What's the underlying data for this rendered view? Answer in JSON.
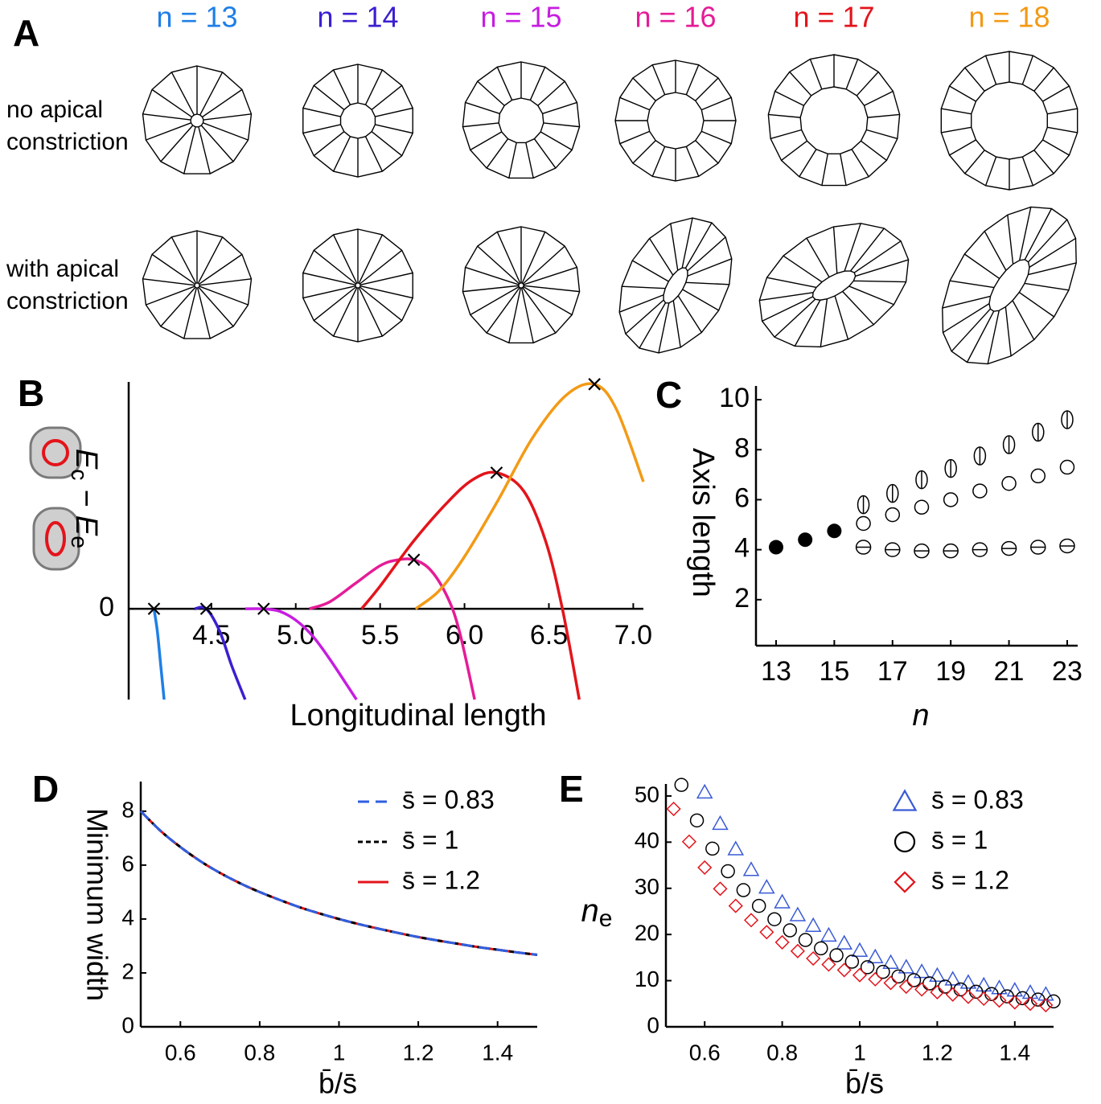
{
  "figure": {
    "panel_labels": [
      "A",
      "B",
      "C",
      "D",
      "E"
    ],
    "ring_labels": [
      {
        "text": "n = 13",
        "color": "#1f7fe6"
      },
      {
        "text": "n = 14",
        "color": "#3b1fd1"
      },
      {
        "text": "n = 15",
        "color": "#c61de0"
      },
      {
        "text": "n = 16",
        "color": "#e51c97"
      },
      {
        "text": "n = 17",
        "color": "#e3141b"
      },
      {
        "text": "n = 18",
        "color": "#f39a16"
      }
    ],
    "row_labels": [
      [
        "no apical",
        "constriction"
      ],
      [
        "with apical",
        "constriction"
      ]
    ]
  },
  "chart_data": [
    {
      "type": "line",
      "x_label": "Longitudinal length",
      "y_label": [
        {
          "text": "E"
        },
        {
          "text": "c",
          "sub": true
        },
        {
          "text": " − E"
        },
        {
          "text": "e",
          "sub": true
        }
      ],
      "xlim": [
        4.01,
        7.06
      ],
      "ylim": [
        -0.4,
        1.0
      ],
      "xticks": [
        4.5,
        {
          "value": 5,
          "label": "5.0"
        },
        5.5,
        {
          "value": 6,
          "label": "6.0"
        },
        6.5,
        {
          "value": 7,
          "label": "7.0"
        }
      ],
      "yticks": [
        0
      ],
      "series": [
        {
          "color": "#1f7fe6",
          "x": [
            4.16,
            4.18,
            4.2,
            4.22
          ],
          "values": [
            0,
            -0.1,
            -0.25,
            -0.4
          ],
          "marker_x": 4.16,
          "marker_y": 0
        },
        {
          "color": "#3b1fd1",
          "x": [
            4.4,
            4.47,
            4.55,
            4.62,
            4.7
          ],
          "values": [
            0,
            0,
            -0.1,
            -0.25,
            -0.4
          ],
          "marker_x": 4.47,
          "marker_y": 0
        },
        {
          "color": "#c61de0",
          "x": [
            4.7,
            4.8,
            4.9,
            5.0,
            5.1,
            5.2,
            5.36
          ],
          "values": [
            0,
            0,
            -0.01,
            -0.05,
            -0.12,
            -0.22,
            -0.4
          ],
          "marker_x": 4.81,
          "marker_y": 0
        },
        {
          "color": "#e51c97",
          "x": [
            5.08,
            5.2,
            5.35,
            5.5,
            5.6,
            5.7,
            5.8,
            5.9,
            5.97,
            6.06
          ],
          "values": [
            0,
            0.03,
            0.11,
            0.19,
            0.215,
            0.216,
            0.17,
            0.05,
            -0.1,
            -0.4
          ],
          "marker_x": 5.7,
          "marker_y": 0.216
        },
        {
          "color": "#e3141b",
          "x": [
            5.39,
            5.5,
            5.7,
            5.9,
            6.05,
            6.19,
            6.35,
            6.48,
            6.58,
            6.68
          ],
          "values": [
            0,
            0.1,
            0.3,
            0.47,
            0.57,
            0.6,
            0.52,
            0.3,
            0,
            -0.4
          ],
          "marker_x": 6.19,
          "marker_y": 0.6
        },
        {
          "color": "#f39a16",
          "x": [
            5.71,
            5.85,
            6.0,
            6.2,
            6.4,
            6.6,
            6.77,
            6.9,
            7.06
          ],
          "values": [
            0,
            0.08,
            0.23,
            0.48,
            0.75,
            0.94,
            0.99,
            0.88,
            0.56
          ],
          "marker_x": 6.77,
          "marker_y": 0.99
        }
      ]
    },
    {
      "type": "scatter",
      "x_label": "n",
      "y_label": "Axis length",
      "xlim": [
        12.31,
        23.36
      ],
      "ylim": [
        0.16,
        10.55
      ],
      "xticks": [
        13,
        15,
        17,
        19,
        21,
        23
      ],
      "yticks": [
        2,
        4,
        6,
        8,
        10
      ],
      "series": [
        {
          "marker": "filled",
          "color": "#000000",
          "x": [
            13,
            14,
            15
          ],
          "values": [
            4.1,
            4.4,
            4.75
          ]
        },
        {
          "marker": "split-v",
          "color": "#000000",
          "x": [
            16,
            17,
            18,
            19,
            20,
            21,
            22,
            23
          ],
          "values": [
            5.8,
            6.25,
            6.8,
            7.25,
            7.75,
            8.2,
            8.7,
            9.2
          ]
        },
        {
          "marker": "open",
          "color": "#000000",
          "x": [
            16,
            17,
            18,
            19,
            20,
            21,
            22,
            23
          ],
          "values": [
            5.05,
            5.4,
            5.7,
            6.0,
            6.35,
            6.65,
            6.95,
            7.3
          ]
        },
        {
          "marker": "split-h",
          "color": "#000000",
          "x": [
            16,
            17,
            18,
            19,
            20,
            21,
            22,
            23
          ],
          "values": [
            4.1,
            4.0,
            3.95,
            3.95,
            4.0,
            4.05,
            4.1,
            4.15
          ]
        }
      ]
    },
    {
      "type": "line",
      "x_label": "b̄/s̄",
      "y_label": "Minimum width",
      "xlim": [
        0.5,
        1.5
      ],
      "ylim": [
        0,
        9.1
      ],
      "xticks": [
        0.6,
        0.8,
        1,
        1.2,
        1.4
      ],
      "yticks": [
        0,
        2,
        4,
        6,
        8
      ],
      "x": [
        0.5,
        0.55,
        0.6,
        0.65,
        0.7,
        0.75,
        0.8,
        0.85,
        0.9,
        0.95,
        1,
        1.05,
        1.1,
        1.15,
        1.2,
        1.25,
        1.3,
        1.35,
        1.4,
        1.45,
        1.5
      ],
      "series": [
        {
          "name": "s̄ = 0.83",
          "color": "#2f5fe0",
          "dash": "14 8",
          "values": [
            8,
            7.27,
            6.67,
            6.15,
            5.71,
            5.33,
            5,
            4.71,
            4.44,
            4.21,
            4,
            3.81,
            3.64,
            3.48,
            3.33,
            3.2,
            3.08,
            2.96,
            2.86,
            2.76,
            2.67
          ]
        },
        {
          "name": "s̄ = 1",
          "color": "#000000",
          "dash": "6 4",
          "values": [
            8,
            7.27,
            6.67,
            6.15,
            5.71,
            5.33,
            5,
            4.71,
            4.44,
            4.21,
            4,
            3.81,
            3.64,
            3.48,
            3.33,
            3.2,
            3.08,
            2.96,
            2.86,
            2.76,
            2.67
          ]
        },
        {
          "name": "s̄ = 1.2",
          "color": "#e3141b",
          "dash": "none",
          "values": [
            8,
            7.27,
            6.67,
            6.15,
            5.71,
            5.33,
            5,
            4.71,
            4.44,
            4.21,
            4,
            3.81,
            3.64,
            3.48,
            3.33,
            3.2,
            3.08,
            2.96,
            2.86,
            2.76,
            2.67
          ]
        }
      ]
    },
    {
      "type": "scatter",
      "x_label": "b̄/s̄",
      "y_label": [
        {
          "text": "n"
        },
        {
          "text": "e",
          "sub": true
        }
      ],
      "xlim": [
        0.5,
        1.5
      ],
      "ylim": [
        0,
        52.6
      ],
      "xticks": [
        0.6,
        0.8,
        1,
        1.2,
        1.4
      ],
      "yticks": [
        0,
        10,
        20,
        30,
        40,
        50
      ],
      "series": [
        {
          "name": "s̄ = 0.83",
          "marker": "triangle",
          "color": "#3a5ad6",
          "x": [
            0.6,
            0.64,
            0.68,
            0.72,
            0.76,
            0.8,
            0.84,
            0.88,
            0.92,
            0.96,
            1,
            1.04,
            1.08,
            1.12,
            1.16,
            1.2,
            1.24,
            1.28,
            1.32,
            1.36,
            1.4,
            1.44,
            1.48
          ],
          "values": [
            50.8,
            44.0,
            38.5,
            34.0,
            30.2,
            27.0,
            24.2,
            21.9,
            19.8,
            18.1,
            16.5,
            15.1,
            13.9,
            12.9,
            11.9,
            11.1,
            10.3,
            9.6,
            9.0,
            8.4,
            7.9,
            7.4,
            7.0
          ]
        },
        {
          "name": "s̄ = 1",
          "marker": "circle",
          "color": "#000000",
          "x": [
            0.54,
            0.58,
            0.62,
            0.66,
            0.7,
            0.74,
            0.78,
            0.82,
            0.86,
            0.9,
            0.94,
            0.98,
            1.02,
            1.06,
            1.1,
            1.14,
            1.18,
            1.22,
            1.26,
            1.3,
            1.34,
            1.38,
            1.42,
            1.46,
            1.5
          ],
          "values": [
            52.4,
            44.7,
            38.6,
            33.7,
            29.6,
            26.2,
            23.3,
            20.9,
            18.8,
            17.0,
            15.5,
            14.1,
            12.9,
            11.9,
            10.9,
            10.1,
            9.4,
            8.7,
            8.1,
            7.6,
            7.1,
            6.6,
            6.2,
            5.9,
            5.5
          ]
        },
        {
          "name": "s̄ = 1.2",
          "marker": "diamond",
          "color": "#e3141b",
          "x": [
            0.52,
            0.56,
            0.6,
            0.64,
            0.68,
            0.72,
            0.76,
            0.8,
            0.84,
            0.88,
            0.92,
            0.96,
            1,
            1.04,
            1.08,
            1.12,
            1.16,
            1.2,
            1.24,
            1.28,
            1.32,
            1.36,
            1.4,
            1.44,
            1.48
          ],
          "values": [
            47.2,
            40.1,
            34.5,
            29.9,
            26.2,
            23.1,
            20.5,
            18.3,
            16.4,
            14.8,
            13.5,
            12.3,
            11.2,
            10.3,
            9.5,
            8.7,
            8.1,
            7.5,
            7.0,
            6.5,
            6.1,
            5.7,
            5.3,
            5.0,
            4.7
          ]
        }
      ]
    }
  ]
}
